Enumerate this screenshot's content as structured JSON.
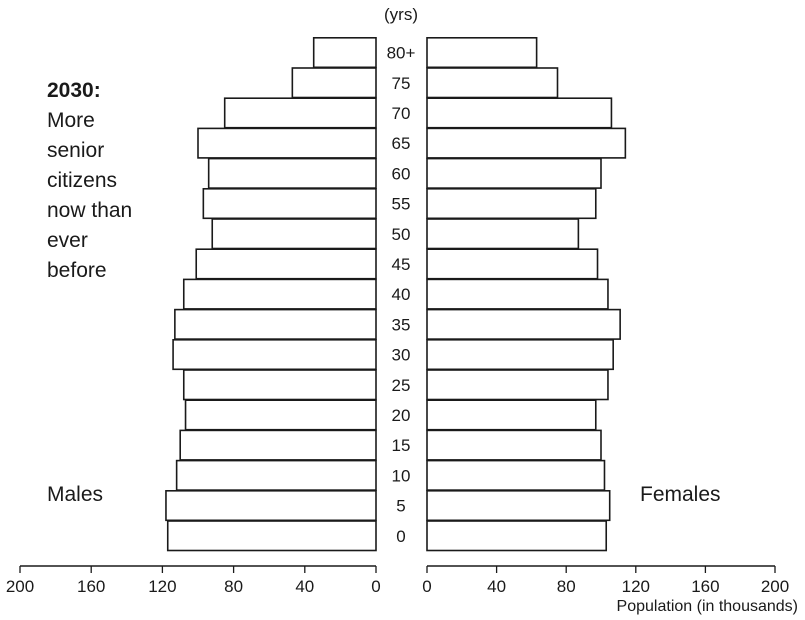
{
  "annotation": {
    "year": "2030:",
    "lines": [
      "More",
      "senior",
      "citizens",
      "now than",
      "ever",
      "before"
    ]
  },
  "labels": {
    "males": "Males",
    "females": "Females",
    "age_unit": "(yrs)",
    "xlabel": "Population (in thousands)"
  },
  "chart_data": {
    "type": "bar",
    "orientation": "horizontal-population-pyramid",
    "categories": [
      "0",
      "5",
      "10",
      "15",
      "20",
      "25",
      "30",
      "35",
      "40",
      "45",
      "50",
      "55",
      "60",
      "65",
      "70",
      "75",
      "80+"
    ],
    "series": [
      {
        "name": "Males",
        "values": [
          117,
          118,
          112,
          110,
          107,
          108,
          114,
          113,
          108,
          101,
          92,
          97,
          94,
          100,
          85,
          47,
          35
        ]
      },
      {
        "name": "Females",
        "values": [
          103,
          105,
          102,
          100,
          97,
          104,
          107,
          111,
          104,
          98,
          87,
          97,
          100,
          114,
          106,
          75,
          63
        ]
      }
    ],
    "xticks": [
      "200",
      "160",
      "120",
      "80",
      "40",
      "0",
      "0",
      "40",
      "80",
      "120",
      "160",
      "200"
    ],
    "xlim": [
      0,
      200
    ],
    "ylabel": "(yrs)",
    "xlabel": "Population (in thousands)",
    "grid": false
  }
}
